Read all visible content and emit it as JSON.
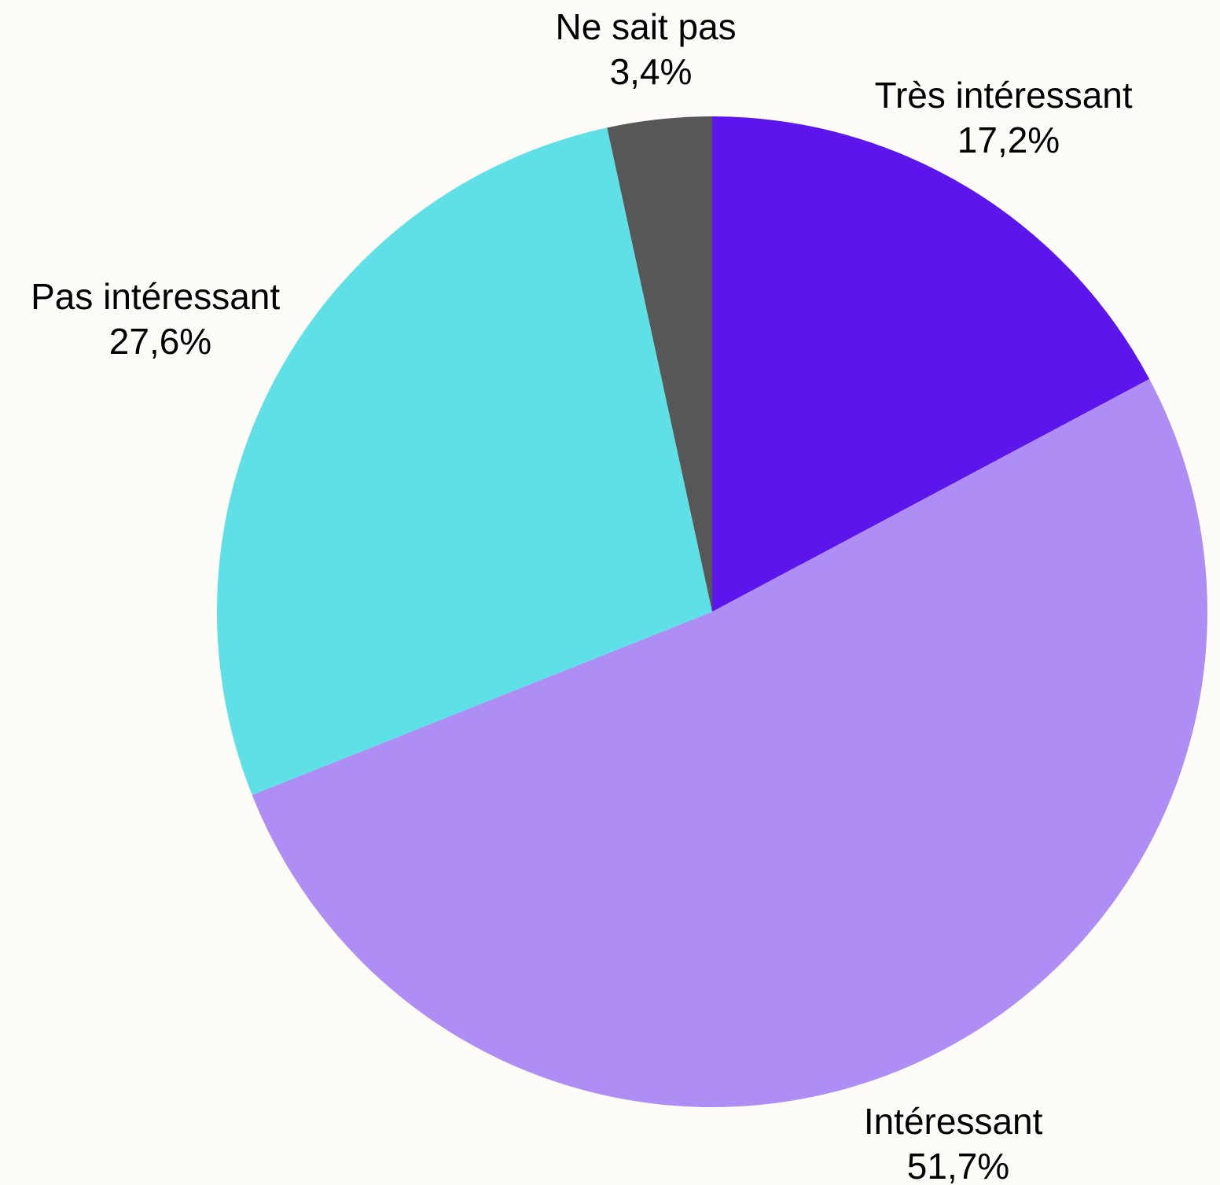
{
  "chart_data": {
    "type": "pie",
    "title": "",
    "slices": [
      {
        "label": "Très intéressant",
        "value": 17.2,
        "display": "17,2%",
        "color": "#5c16eb"
      },
      {
        "label": "Intéressant",
        "value": 51.7,
        "display": "51,7%",
        "color": "#ae8ef4"
      },
      {
        "label": "Pas intéressant",
        "value": 27.6,
        "display": "27,6%",
        "color": "#5ee0e6"
      },
      {
        "label": "Ne sait pas",
        "value": 3.4,
        "display": "3,4%",
        "color": "#575757"
      }
    ],
    "start_angle": "12 o'clock",
    "direction": "clockwise",
    "legend": "none"
  }
}
